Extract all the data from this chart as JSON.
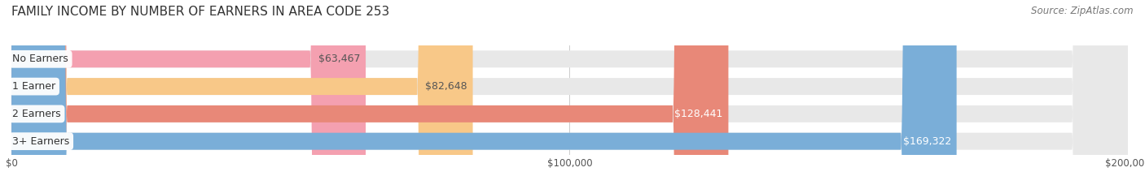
{
  "title": "FAMILY INCOME BY NUMBER OF EARNERS IN AREA CODE 253",
  "source": "Source: ZipAtlas.com",
  "categories": [
    "No Earners",
    "1 Earner",
    "2 Earners",
    "3+ Earners"
  ],
  "values": [
    63467,
    82648,
    128441,
    169322
  ],
  "labels": [
    "$63,467",
    "$82,648",
    "$128,441",
    "$169,322"
  ],
  "bar_colors": [
    "#f4a0b0",
    "#f8c888",
    "#e88878",
    "#7aaed8"
  ],
  "bar_bg_color": "#e8e8e8",
  "label_colors": [
    "#555555",
    "#555555",
    "#ffffff",
    "#ffffff"
  ],
  "xmax": 200000,
  "xticklabels": [
    "$0",
    "$100,000",
    "$200,000"
  ],
  "background_color": "#ffffff",
  "title_fontsize": 11,
  "source_fontsize": 8.5,
  "bar_label_fontsize": 9,
  "category_fontsize": 9
}
